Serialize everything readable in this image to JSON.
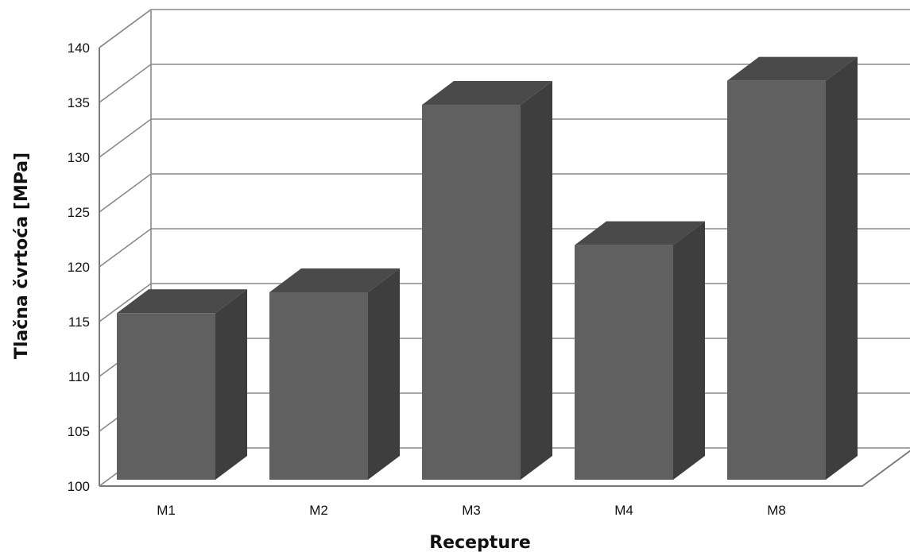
{
  "chart_data": {
    "type": "bar",
    "categories": [
      "M1",
      "M2",
      "M3",
      "M4",
      "M8"
    ],
    "values": [
      115.2,
      117.1,
      134.2,
      121.4,
      136.4
    ],
    "title": "",
    "xlabel": "Recepture",
    "ylabel": "Tlačna čvrtoća [MPa]",
    "ylim": [
      100,
      140
    ],
    "yticks": [
      "100",
      "105",
      "110",
      "115",
      "120",
      "125",
      "130",
      "135",
      "140"
    ],
    "grid": true,
    "legend": "none",
    "colors": {
      "front": "#606060",
      "side": "#3e3e3e",
      "top": "#4a4a4a",
      "grid": "#8a8a8a"
    }
  }
}
